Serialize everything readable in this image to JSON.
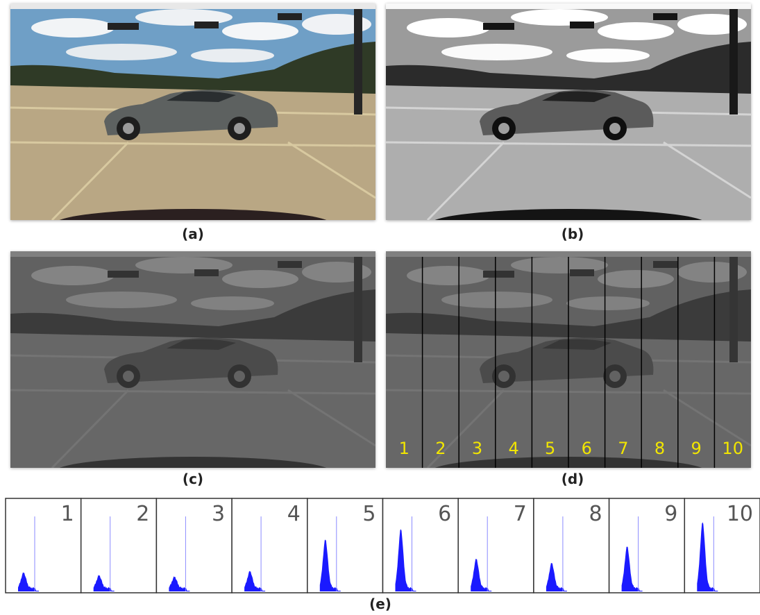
{
  "figure": {
    "panels": [
      {
        "label": "(a)"
      },
      {
        "label": "(b)"
      },
      {
        "label": "(c)"
      },
      {
        "label": "(d)",
        "segments": [
          "1",
          "2",
          "3",
          "4",
          "5",
          "6",
          "7",
          "8",
          "9",
          "10"
        ]
      }
    ],
    "histograms": {
      "label": "(e)",
      "numbers": [
        "1",
        "2",
        "3",
        "4",
        "5",
        "6",
        "7",
        "8",
        "9",
        "10"
      ]
    }
  }
}
